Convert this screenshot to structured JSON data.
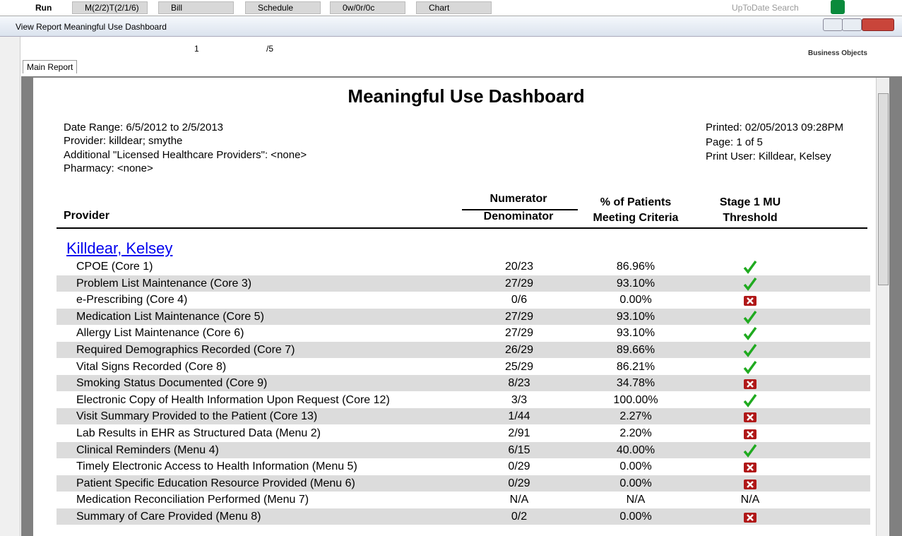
{
  "taskbar": {
    "run": "Run",
    "tabs": [
      "M(2/2)T(2/1/6)",
      "Bill",
      "Schedule",
      "0w/0r/0c",
      "Chart"
    ],
    "search": "UpToDate Search"
  },
  "window": {
    "title": "View Report Meaningful Use Dashboard"
  },
  "toolbar": {
    "page": "1",
    "page_total": "/5",
    "logo": "Business Objects"
  },
  "tab": "Main Report",
  "report": {
    "title": "Meaningful Use Dashboard",
    "info_left": [
      "Date Range: 6/5/2012 to 2/5/2013",
      "Provider: killdear; smythe",
      "Additional \"Licensed Healthcare Providers\":  <none>",
      "Pharmacy: <none>"
    ],
    "info_right": [
      "Printed:  02/05/2013 09:28PM",
      "Page: 1 of 5",
      "Print User: Killdear, Kelsey"
    ],
    "columns": {
      "provider": "Provider",
      "numerator": "Numerator",
      "denominator": "Denominator",
      "percent": [
        "% of Patients",
        "Meeting Criteria"
      ],
      "threshold": [
        "Stage 1 MU",
        "Threshold"
      ]
    },
    "provider": "Killdear, Kelsey",
    "rows": [
      [
        "CPOE (Core 1)",
        "20/23",
        "86.96%",
        true
      ],
      [
        "Problem List Maintenance (Core 3)",
        "27/29",
        "93.10%",
        true
      ],
      [
        "e-Prescribing (Core 4)",
        "0/6",
        "0.00%",
        false
      ],
      [
        "Medication List Maintenance (Core 5)",
        "27/29",
        "93.10%",
        true
      ],
      [
        "Allergy List Maintenance (Core 6)",
        "27/29",
        "93.10%",
        true
      ],
      [
        "Required Demographics Recorded (Core 7)",
        "26/29",
        "89.66%",
        true
      ],
      [
        "Vital Signs Recorded (Core 8)",
        "25/29",
        "86.21%",
        true
      ],
      [
        "Smoking Status Documented (Core 9)",
        "8/23",
        "34.78%",
        false
      ],
      [
        "Electronic Copy of Health Information Upon Request (Core 12)",
        "3/3",
        "100.00%",
        true
      ],
      [
        "Visit Summary Provided to the Patient (Core 13)",
        "1/44",
        "2.27%",
        false
      ],
      [
        "Lab Results in EHR as Structured Data (Menu 2)",
        "2/91",
        "2.20%",
        false
      ],
      [
        "Clinical Reminders (Menu 4)",
        "6/15",
        "40.00%",
        true
      ],
      [
        "Timely Electronic Access to Health Information (Menu 5)",
        "0/29",
        "0.00%",
        false
      ],
      [
        "Patient Specific Education Resource Provided (Menu 6)",
        "0/29",
        "0.00%",
        false
      ],
      [
        "Medication Reconciliation Performed (Menu 7)",
        "N/A",
        "N/A",
        "N/A"
      ],
      [
        "Summary of Care Provided (Menu 8)",
        "0/2",
        "0.00%",
        false
      ]
    ]
  }
}
